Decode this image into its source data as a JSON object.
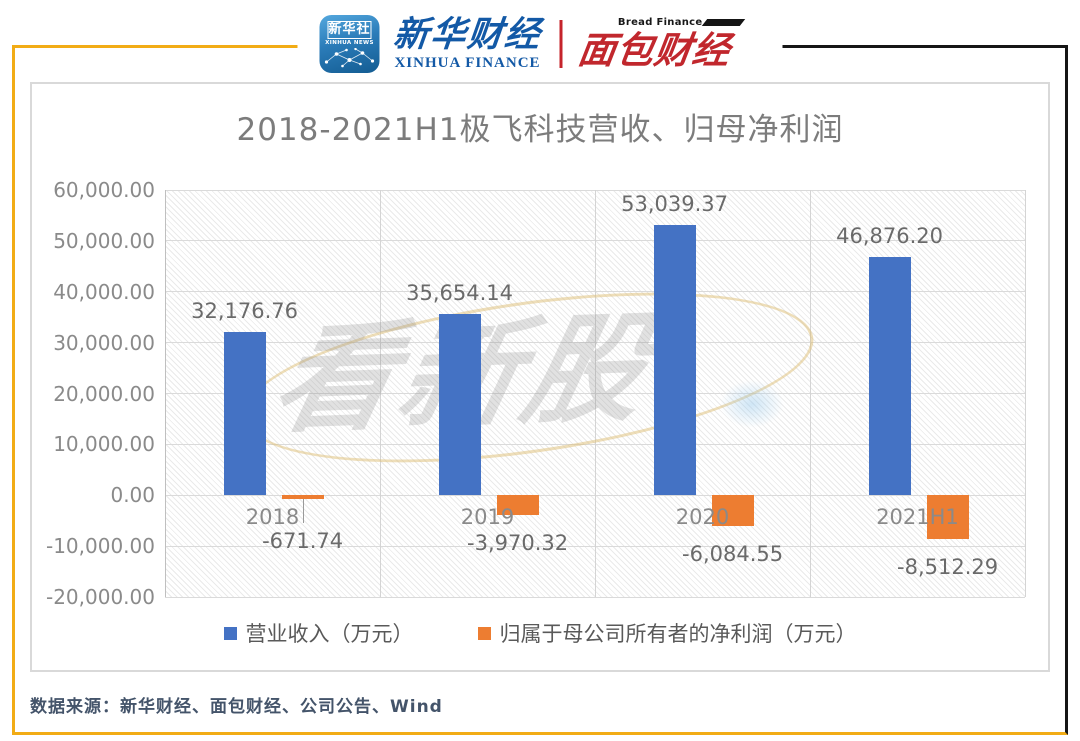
{
  "header": {
    "xinhua_news_icon": {
      "line1": "新华社",
      "line2": "XINHUA NEWS"
    },
    "xinhua_finance": {
      "cn": "新华财经",
      "en": "XINHUA FINANCE"
    },
    "bread_finance": {
      "cn": "面包财经",
      "en": "Bread Finance"
    }
  },
  "watermark": "看新股",
  "chart_data": {
    "type": "bar",
    "title": "2018-2021H1极飞科技营收、归母净利润",
    "categories": [
      "2018",
      "2019",
      "2020",
      "2021H1"
    ],
    "series": [
      {
        "name": "营业收入（万元）",
        "color": "#4472C4",
        "values": [
          32176.76,
          35654.14,
          53039.37,
          46876.2
        ],
        "labels": [
          "32,176.76",
          "35,654.14",
          "53,039.37",
          "46,876.20"
        ]
      },
      {
        "name": "归属于母公司所有者的净利润（万元）",
        "color": "#ED7D31",
        "values": [
          -671.74,
          -3970.32,
          -6084.55,
          -8512.29
        ],
        "labels": [
          "-671.74",
          "-3,970.32",
          "-6,084.55",
          "-8,512.29"
        ]
      }
    ],
    "y_axis": {
      "min": -20000,
      "max": 60000,
      "step": 10000,
      "tick_labels": [
        "60,000.00",
        "50,000.00",
        "40,000.00",
        "30,000.00",
        "20,000.00",
        "10,000.00",
        "0.00",
        "-10,000.00",
        "-20,000.00"
      ]
    },
    "legend_position": "bottom",
    "grid": true
  },
  "footer": {
    "source": "数据来源：新华财经、面包财经、公司公告、Wind"
  },
  "colors": {
    "frame_yellow": "#F2AC15",
    "frame_black": "#161616",
    "bar_blue": "#4472C4",
    "bar_orange": "#ED7D31",
    "title_gray": "#7C7C7C",
    "axis_gray": "#8A8A8A",
    "value_label_gray": "#6A6A6A",
    "legend_gray": "#595959",
    "footer_color": "#44546A",
    "box_border": "#D9D9D9"
  }
}
